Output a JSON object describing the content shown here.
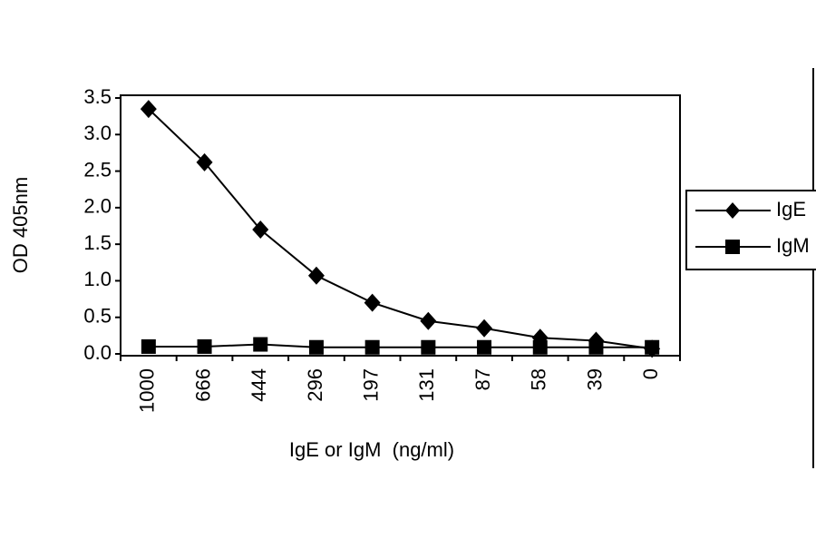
{
  "chart_data": {
    "type": "line",
    "y_label": "OD 405nm",
    "x_label": "IgE or IgM  (ng/ml)",
    "categories": [
      "1000",
      "666",
      "444",
      "296",
      "197",
      "131",
      "87",
      "58",
      "39",
      "0"
    ],
    "series": [
      {
        "name": "IgE",
        "color": "#000000",
        "marker": "diamond",
        "values": [
          3.35,
          2.62,
          1.7,
          1.07,
          0.7,
          0.45,
          0.35,
          0.22,
          0.18,
          0.07
        ]
      },
      {
        "name": "IgM",
        "color": "#000000",
        "marker": "square",
        "values": [
          0.1,
          0.1,
          0.13,
          0.09,
          0.09,
          0.09,
          0.09,
          0.09,
          0.09,
          0.09
        ]
      }
    ],
    "ylim": [
      0,
      3.5
    ],
    "yticks": [
      {
        "value": 0,
        "label": "0.0"
      },
      0.5,
      {
        "value": 1,
        "label": "1.0"
      },
      1.5,
      {
        "value": 2,
        "label": "2.0"
      },
      2.5,
      {
        "value": 3,
        "label": "3.0"
      },
      3.5
    ],
    "grid": false,
    "legend": "right"
  }
}
